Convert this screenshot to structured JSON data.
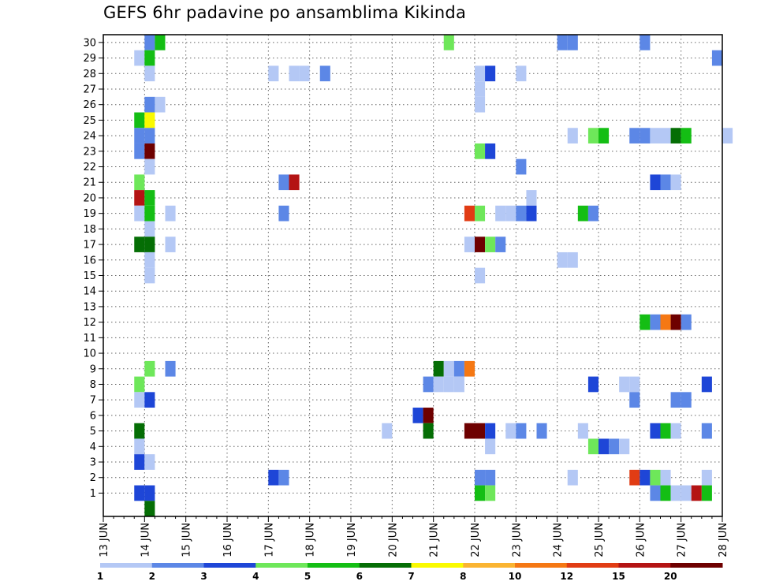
{
  "chart_data": {
    "type": "heatmap",
    "title": "GEFS 6hr padavine po ansamblima Kikinda",
    "xlabel": "",
    "ylabel": "",
    "x_tick_labels": [
      "13 JUN",
      "14 JUN",
      "15 JUN",
      "16 JUN",
      "17 JUN",
      "18 JUN",
      "19 JUN",
      "20 JUN",
      "21 JUN",
      "22 JUN",
      "23 JUN",
      "24 JUN",
      "25 JUN",
      "26 JUN",
      "27 JUN",
      "28 JUN"
    ],
    "x_range": [
      "13 JUN 00",
      "28 JUN 00"
    ],
    "time_step_hours": 6,
    "y_tick_labels": [
      "1",
      "2",
      "3",
      "4",
      "5",
      "6",
      "7",
      "8",
      "9",
      "10",
      "11",
      "12",
      "13",
      "14",
      "15",
      "16",
      "17",
      "18",
      "19",
      "20",
      "21",
      "22",
      "23",
      "24",
      "25",
      "26",
      "27",
      "28",
      "29",
      "30"
    ],
    "y_range": [
      0,
      30
    ],
    "grid": true,
    "legend": {
      "placement": "bottom",
      "labels": [
        "1",
        "2",
        "3",
        "4",
        "5",
        "6",
        "7",
        "8",
        "10",
        "12",
        "15",
        "20"
      ],
      "colors": [
        "#b4c8f5",
        "#5c87e6",
        "#1e46d7",
        "#6ee75a",
        "#14be14",
        "#056e05",
        "#fafa00",
        "#fab432",
        "#f57814",
        "#e13c14",
        "#b41414",
        "#6e0000"
      ]
    },
    "cells": [
      [
        "14 JUN 00",
        30,
        2
      ],
      [
        "14 JUN 06",
        30,
        5
      ],
      [
        "21 JUN 06",
        30,
        4
      ],
      [
        "24 JUN 00",
        30,
        2
      ],
      [
        "24 JUN 06",
        30,
        2
      ],
      [
        "26 JUN 00",
        30,
        2
      ],
      [
        "13 JUN 18",
        29,
        1
      ],
      [
        "14 JUN 00",
        29,
        5
      ],
      [
        "27 JUN 18",
        29,
        2
      ],
      [
        "14 JUN 00",
        28,
        1
      ],
      [
        "17 JUN 00",
        28,
        1
      ],
      [
        "17 JUN 12",
        28,
        1
      ],
      [
        "17 JUN 18",
        28,
        1
      ],
      [
        "18 JUN 06",
        28,
        2
      ],
      [
        "22 JUN 00",
        28,
        1
      ],
      [
        "22 JUN 06",
        28,
        3
      ],
      [
        "23 JUN 00",
        28,
        1
      ],
      [
        "22 JUN 00",
        27,
        1
      ],
      [
        "22 JUN 00",
        26,
        1
      ],
      [
        "14 JUN 00",
        26,
        2
      ],
      [
        "14 JUN 06",
        26,
        1
      ],
      [
        "13 JUN 18",
        25,
        5
      ],
      [
        "14 JUN 00",
        25,
        7
      ],
      [
        "13 JUN 18",
        24,
        2
      ],
      [
        "14 JUN 00",
        24,
        2
      ],
      [
        "24 JUN 06",
        24,
        1
      ],
      [
        "24 JUN 18",
        24,
        4
      ],
      [
        "25 JUN 00",
        24,
        5
      ],
      [
        "25 JUN 18",
        24,
        2
      ],
      [
        "26 JUN 00",
        24,
        2
      ],
      [
        "26 JUN 06",
        24,
        1
      ],
      [
        "26 JUN 12",
        24,
        1
      ],
      [
        "26 JUN 18",
        24,
        6
      ],
      [
        "27 JUN 00",
        24,
        5
      ],
      [
        "28 JUN 00",
        24,
        1
      ],
      [
        "13 JUN 18",
        23,
        2
      ],
      [
        "14 JUN 00",
        23,
        20
      ],
      [
        "22 JUN 00",
        23,
        4
      ],
      [
        "22 JUN 06",
        23,
        3
      ],
      [
        "14 JUN 00",
        22,
        1
      ],
      [
        "23 JUN 00",
        22,
        2
      ],
      [
        "13 JUN 18",
        21,
        4
      ],
      [
        "17 JUN 06",
        21,
        2
      ],
      [
        "17 JUN 12",
        21,
        15
      ],
      [
        "26 JUN 06",
        21,
        3
      ],
      [
        "26 JUN 12",
        21,
        2
      ],
      [
        "26 JUN 18",
        21,
        1
      ],
      [
        "13 JUN 18",
        20,
        15
      ],
      [
        "14 JUN 00",
        20,
        5
      ],
      [
        "23 JUN 06",
        20,
        1
      ],
      [
        "13 JUN 18",
        19,
        1
      ],
      [
        "14 JUN 00",
        19,
        5
      ],
      [
        "14 JUN 12",
        19,
        1
      ],
      [
        "17 JUN 06",
        19,
        2
      ],
      [
        "21 JUN 18",
        19,
        12
      ],
      [
        "22 JUN 00",
        19,
        4
      ],
      [
        "22 JUN 12",
        19,
        1
      ],
      [
        "22 JUN 18",
        19,
        1
      ],
      [
        "23 JUN 00",
        19,
        2
      ],
      [
        "23 JUN 06",
        19,
        3
      ],
      [
        "24 JUN 12",
        19,
        5
      ],
      [
        "24 JUN 18",
        19,
        2
      ],
      [
        "14 JUN 00",
        18,
        1
      ],
      [
        "13 JUN 18",
        17,
        6
      ],
      [
        "14 JUN 00",
        17,
        6
      ],
      [
        "14 JUN 12",
        17,
        1
      ],
      [
        "21 JUN 18",
        17,
        1
      ],
      [
        "22 JUN 00",
        17,
        20
      ],
      [
        "22 JUN 06",
        17,
        4
      ],
      [
        "22 JUN 12",
        17,
        2
      ],
      [
        "14 JUN 00",
        16,
        1
      ],
      [
        "24 JUN 00",
        16,
        1
      ],
      [
        "24 JUN 06",
        16,
        1
      ],
      [
        "14 JUN 00",
        15,
        1
      ],
      [
        "22 JUN 00",
        15,
        1
      ],
      [
        "26 JUN 00",
        12,
        5
      ],
      [
        "26 JUN 06",
        12,
        2
      ],
      [
        "26 JUN 12",
        12,
        10
      ],
      [
        "26 JUN 18",
        12,
        20
      ],
      [
        "27 JUN 00",
        12,
        2
      ],
      [
        "14 JUN 00",
        9,
        4
      ],
      [
        "14 JUN 12",
        9,
        2
      ],
      [
        "21 JUN 00",
        9,
        6
      ],
      [
        "21 JUN 06",
        9,
        1
      ],
      [
        "21 JUN 12",
        9,
        2
      ],
      [
        "21 JUN 18",
        9,
        10
      ],
      [
        "13 JUN 18",
        8,
        4
      ],
      [
        "20 JUN 18",
        8,
        2
      ],
      [
        "21 JUN 00",
        8,
        1
      ],
      [
        "21 JUN 06",
        8,
        1
      ],
      [
        "21 JUN 12",
        8,
        1
      ],
      [
        "24 JUN 18",
        8,
        3
      ],
      [
        "25 JUN 12",
        8,
        1
      ],
      [
        "25 JUN 18",
        8,
        1
      ],
      [
        "27 JUN 12",
        8,
        3
      ],
      [
        "13 JUN 18",
        7,
        1
      ],
      [
        "14 JUN 00",
        7,
        3
      ],
      [
        "25 JUN 18",
        7,
        2
      ],
      [
        "26 JUN 18",
        7,
        2
      ],
      [
        "27 JUN 00",
        7,
        2
      ],
      [
        "20 JUN 12",
        6,
        3
      ],
      [
        "20 JUN 18",
        6,
        20
      ],
      [
        "13 JUN 18",
        5,
        6
      ],
      [
        "19 JUN 18",
        5,
        1
      ],
      [
        "20 JUN 18",
        5,
        6
      ],
      [
        "21 JUN 18",
        5,
        20
      ],
      [
        "22 JUN 00",
        5,
        20
      ],
      [
        "22 JUN 06",
        5,
        3
      ],
      [
        "22 JUN 18",
        5,
        1
      ],
      [
        "23 JUN 00",
        5,
        2
      ],
      [
        "23 JUN 12",
        5,
        2
      ],
      [
        "24 JUN 12",
        5,
        1
      ],
      [
        "26 JUN 06",
        5,
        3
      ],
      [
        "26 JUN 12",
        5,
        5
      ],
      [
        "26 JUN 18",
        5,
        1
      ],
      [
        "27 JUN 12",
        5,
        2
      ],
      [
        "13 JUN 18",
        4,
        1
      ],
      [
        "22 JUN 06",
        4,
        1
      ],
      [
        "24 JUN 18",
        4,
        4
      ],
      [
        "25 JUN 00",
        4,
        3
      ],
      [
        "25 JUN 06",
        4,
        2
      ],
      [
        "25 JUN 12",
        4,
        1
      ],
      [
        "13 JUN 18",
        3,
        3
      ],
      [
        "14 JUN 00",
        3,
        1
      ],
      [
        "17 JUN 00",
        2,
        3
      ],
      [
        "17 JUN 06",
        2,
        2
      ],
      [
        "22 JUN 00",
        2,
        2
      ],
      [
        "22 JUN 06",
        2,
        2
      ],
      [
        "24 JUN 06",
        2,
        1
      ],
      [
        "25 JUN 18",
        2,
        12
      ],
      [
        "26 JUN 00",
        2,
        3
      ],
      [
        "26 JUN 06",
        2,
        4
      ],
      [
        "26 JUN 12",
        2,
        1
      ],
      [
        "27 JUN 12",
        2,
        1
      ],
      [
        "13 JUN 18",
        1,
        3
      ],
      [
        "14 JUN 00",
        1,
        3
      ],
      [
        "22 JUN 00",
        1,
        5
      ],
      [
        "22 JUN 06",
        1,
        4
      ],
      [
        "26 JUN 06",
        1,
        2
      ],
      [
        "26 JUN 12",
        1,
        5
      ],
      [
        "26 JUN 18",
        1,
        1
      ],
      [
        "27 JUN 00",
        1,
        1
      ],
      [
        "27 JUN 06",
        1,
        15
      ],
      [
        "27 JUN 12",
        1,
        5
      ],
      [
        "14 JUN 00",
        0,
        6
      ]
    ]
  }
}
